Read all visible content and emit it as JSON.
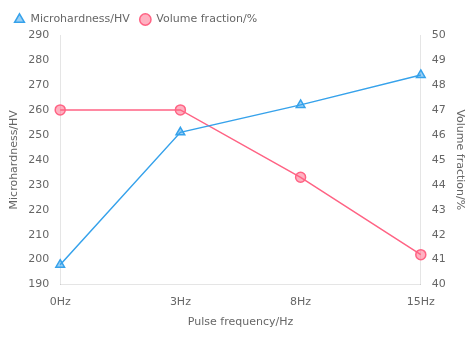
{
  "chart_data": {
    "type": "line",
    "categories": [
      "0Hz",
      "3Hz",
      "8Hz",
      "15Hz"
    ],
    "series": [
      {
        "name": "Microhardness/HV",
        "values": [
          198,
          251,
          262,
          274
        ],
        "marker": "triangle"
      },
      {
        "name": "Volume fraction/%",
        "values": [
          47.0,
          47.0,
          44.3,
          41.2
        ],
        "marker": "circle",
        "axis": "y2"
      }
    ],
    "xlabel": "Pulse frequency/Hz",
    "ylabel": "Microhardness/HV",
    "y2label": "Volume fraction/%",
    "ylim": [
      190,
      290
    ],
    "yticks": [
      190,
      200,
      210,
      220,
      230,
      240,
      250,
      260,
      270,
      280,
      290
    ],
    "y2lim": [
      40,
      50
    ],
    "y2ticks": [
      40,
      41,
      42,
      43,
      44,
      45,
      46,
      47,
      48,
      49,
      50
    ],
    "grid": false,
    "legend": "upper left"
  }
}
